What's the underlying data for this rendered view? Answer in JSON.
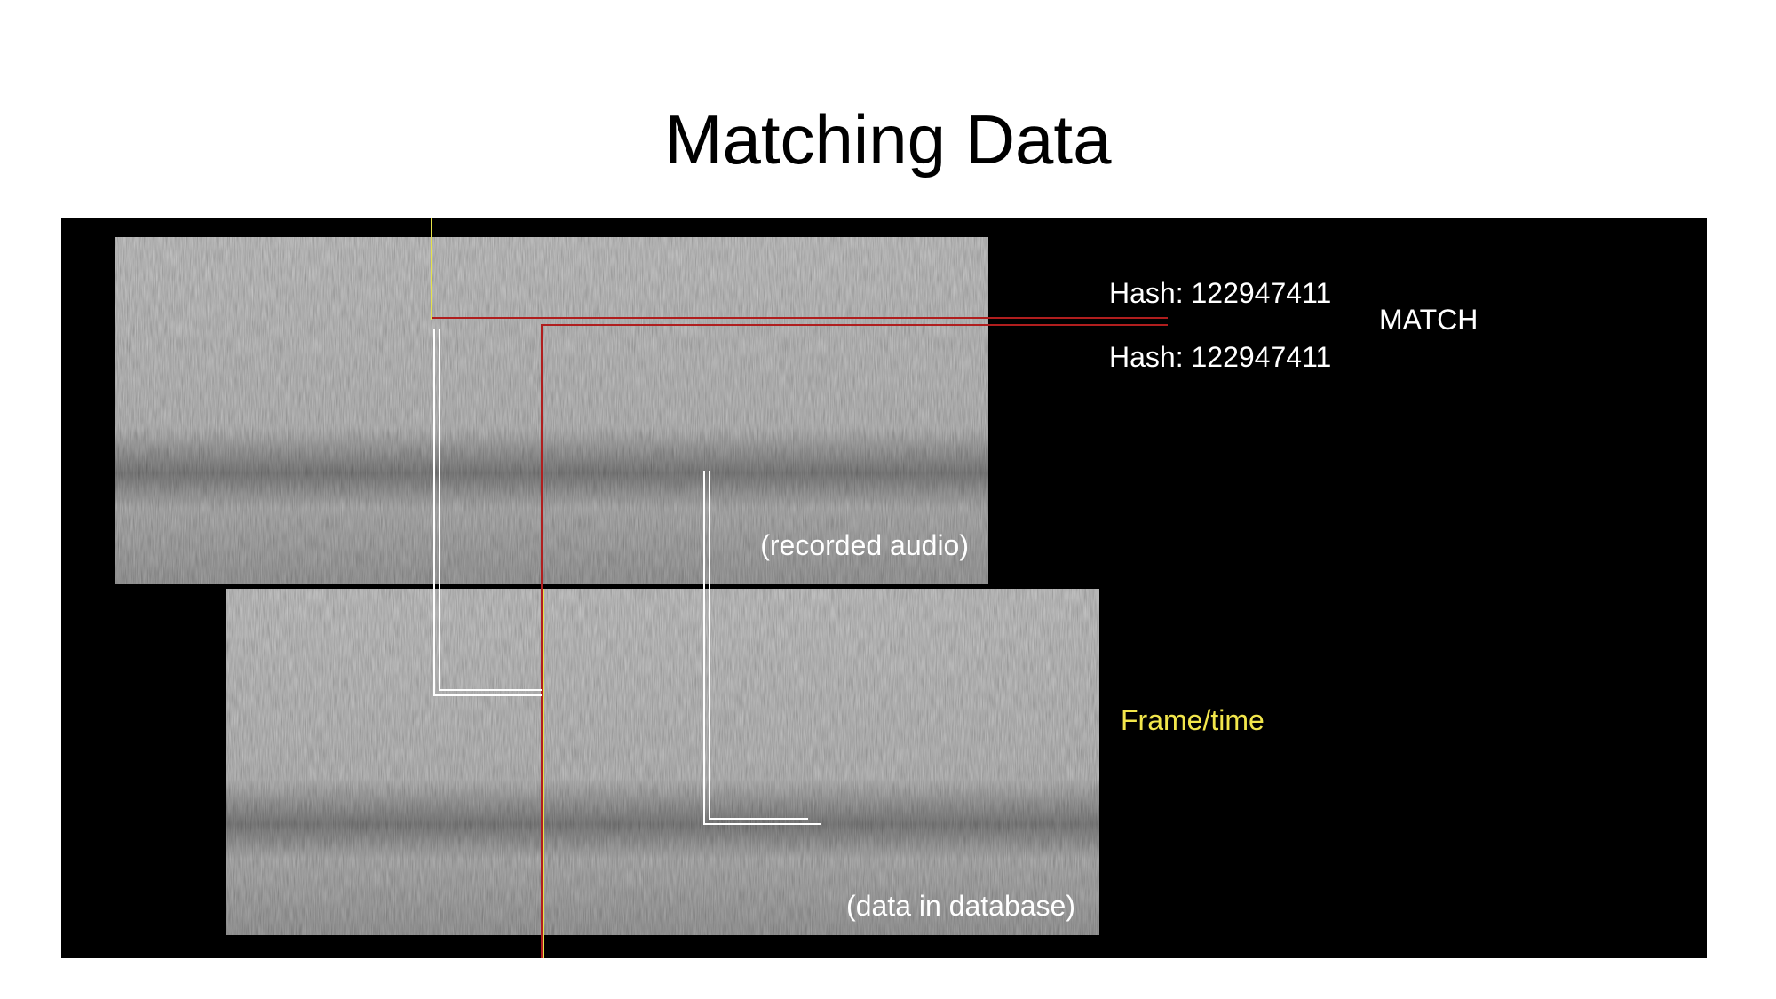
{
  "slide": {
    "title": "Matching Data"
  },
  "spectrograms": {
    "recorded_label": "(recorded audio)",
    "database_label": "(data in database)"
  },
  "annotations": {
    "hash_top": "Hash: 122947411",
    "hash_bottom": "Hash: 122947411",
    "match_label": "MATCH",
    "frame_time_label": "Frame/time"
  },
  "colors": {
    "panel_background": "#000000",
    "spectrogram_gray": "#7a7a7a",
    "hash_line": "#b01e1e",
    "frame_line": "#e6e24a",
    "frame_time_text": "#f2e64b",
    "label_text": "#ffffff"
  }
}
